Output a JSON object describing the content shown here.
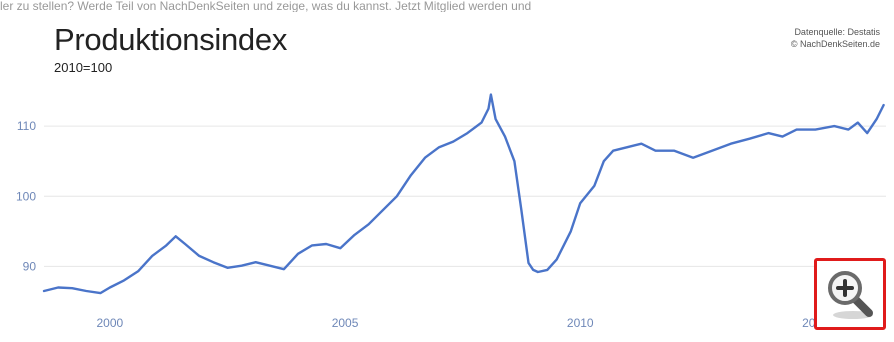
{
  "header_strip_text": "ler zu stellen? Werde Teil von NachDenkSeiten und zeige, was du kannst. Jetzt Mitglied werden und",
  "source": {
    "line1": "Datenquelle: Destatis",
    "line2": "© NachDenkSeiten.de"
  },
  "zoom_button": {
    "icon": "magnifier-plus-icon",
    "border_color": "#e01b1b"
  },
  "colors": {
    "line": "#4a74c9",
    "axis_text": "#6f88b8",
    "grid": "#e6e6e6"
  },
  "chart_data": {
    "type": "line",
    "title": "Produktionsindex",
    "subtitle": "2010=100",
    "xlabel": "",
    "ylabel": "",
    "x_ticks": [
      "2000",
      "2005",
      "2010",
      "2015"
    ],
    "y_ticks": [
      90,
      100,
      110
    ],
    "xlim": [
      1998.6,
      2016.5
    ],
    "ylim": [
      84.5,
      118
    ],
    "grid": true,
    "series": [
      {
        "name": "",
        "x": [
          1998.6,
          1998.9,
          1999.2,
          1999.5,
          1999.8,
          2000.0,
          2000.3,
          2000.6,
          2000.9,
          2001.2,
          2001.4,
          2001.6,
          2001.9,
          2002.2,
          2002.5,
          2002.8,
          2003.1,
          2003.4,
          2003.7,
          2004.0,
          2004.3,
          2004.6,
          2004.9,
          2005.2,
          2005.5,
          2005.8,
          2006.1,
          2006.4,
          2006.7,
          2007.0,
          2007.3,
          2007.6,
          2007.9,
          2008.05,
          2008.1,
          2008.2,
          2008.4,
          2008.6,
          2008.75,
          2008.9,
          2009.0,
          2009.1,
          2009.3,
          2009.5,
          2009.8,
          2010.0,
          2010.3,
          2010.5,
          2010.7,
          2011.0,
          2011.3,
          2011.6,
          2012.0,
          2012.4,
          2012.8,
          2013.2,
          2013.6,
          2014.0,
          2014.3,
          2014.6,
          2015.0,
          2015.4,
          2015.7,
          2015.9,
          2016.1,
          2016.3,
          2016.45
        ],
        "values": [
          86.5,
          87.0,
          86.9,
          86.5,
          86.2,
          87.0,
          88.0,
          89.3,
          91.5,
          93.0,
          94.3,
          93.2,
          91.5,
          90.6,
          89.8,
          90.1,
          90.6,
          90.1,
          89.6,
          91.8,
          93.0,
          93.2,
          92.6,
          94.5,
          96.0,
          98.0,
          100.0,
          103.0,
          105.5,
          107.0,
          107.8,
          109.0,
          110.5,
          112.5,
          114.5,
          111.0,
          108.5,
          105.0,
          98.0,
          90.5,
          89.5,
          89.2,
          89.5,
          91.0,
          95.0,
          99.0,
          101.5,
          105.0,
          106.5,
          107.0,
          107.5,
          106.5,
          106.5,
          105.5,
          106.5,
          107.5,
          108.2,
          109.0,
          108.5,
          109.5,
          109.5,
          110.0,
          109.5,
          110.5,
          109.0,
          111.0,
          113.0
        ]
      }
    ]
  }
}
